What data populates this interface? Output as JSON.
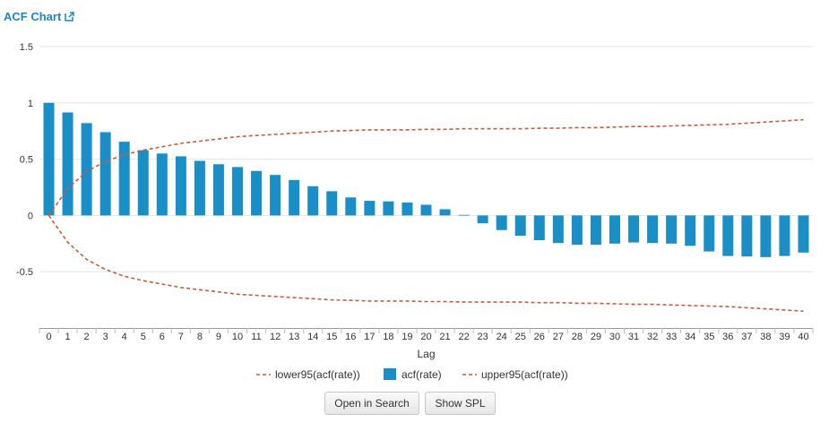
{
  "header": {
    "title": "ACF Chart",
    "icon": "external-link-icon"
  },
  "colors": {
    "bar": "#1a8fc7",
    "bound": "#cd5a33",
    "accent": "#1a87c6",
    "grid": "#e6e6e6"
  },
  "chart_data": {
    "type": "bar",
    "xlabel": "Lag",
    "ylabel": "",
    "ylim": [
      -1,
      1.5
    ],
    "yticks": [
      1.5,
      1,
      0.5,
      0,
      -0.5
    ],
    "ytick_labels": [
      "1.5",
      "1",
      "0.5",
      "0",
      "-0.5"
    ],
    "categories": [
      "0",
      "1",
      "2",
      "3",
      "4",
      "5",
      "6",
      "7",
      "8",
      "9",
      "10",
      "11",
      "12",
      "13",
      "14",
      "15",
      "16",
      "17",
      "18",
      "19",
      "20",
      "21",
      "22",
      "23",
      "24",
      "25",
      "26",
      "27",
      "28",
      "29",
      "30",
      "31",
      "32",
      "33",
      "34",
      "35",
      "36",
      "37",
      "38",
      "39",
      "40"
    ],
    "series": [
      {
        "name": "lower95(acf(rate))",
        "kind": "line-dashed",
        "values": [
          0,
          -0.24,
          -0.39,
          -0.48,
          -0.54,
          -0.58,
          -0.61,
          -0.64,
          -0.66,
          -0.68,
          -0.7,
          -0.71,
          -0.72,
          -0.73,
          -0.74,
          -0.75,
          -0.755,
          -0.76,
          -0.76,
          -0.76,
          -0.765,
          -0.765,
          -0.77,
          -0.77,
          -0.77,
          -0.77,
          -0.775,
          -0.775,
          -0.78,
          -0.78,
          -0.785,
          -0.79,
          -0.79,
          -0.795,
          -0.8,
          -0.805,
          -0.81,
          -0.82,
          -0.83,
          -0.84,
          -0.85
        ]
      },
      {
        "name": "acf(rate)",
        "kind": "bar",
        "values": [
          1.0,
          0.915,
          0.82,
          0.74,
          0.655,
          0.58,
          0.55,
          0.525,
          0.485,
          0.455,
          0.43,
          0.395,
          0.36,
          0.315,
          0.26,
          0.215,
          0.16,
          0.13,
          0.125,
          0.115,
          0.095,
          0.055,
          0.005,
          -0.07,
          -0.13,
          -0.18,
          -0.22,
          -0.245,
          -0.26,
          -0.26,
          -0.25,
          -0.24,
          -0.245,
          -0.25,
          -0.27,
          -0.32,
          -0.36,
          -0.365,
          -0.37,
          -0.36,
          -0.33
        ]
      },
      {
        "name": "upper95(acf(rate))",
        "kind": "line-dashed",
        "values": [
          0,
          0.24,
          0.39,
          0.48,
          0.54,
          0.58,
          0.61,
          0.64,
          0.66,
          0.68,
          0.7,
          0.71,
          0.72,
          0.73,
          0.74,
          0.75,
          0.755,
          0.76,
          0.76,
          0.76,
          0.765,
          0.765,
          0.77,
          0.77,
          0.77,
          0.77,
          0.775,
          0.775,
          0.78,
          0.78,
          0.785,
          0.79,
          0.79,
          0.795,
          0.8,
          0.805,
          0.81,
          0.82,
          0.83,
          0.84,
          0.85
        ]
      }
    ],
    "grid": true,
    "legend": "bottom"
  },
  "buttons": {
    "open_search": "Open in Search",
    "show_spl": "Show SPL"
  }
}
